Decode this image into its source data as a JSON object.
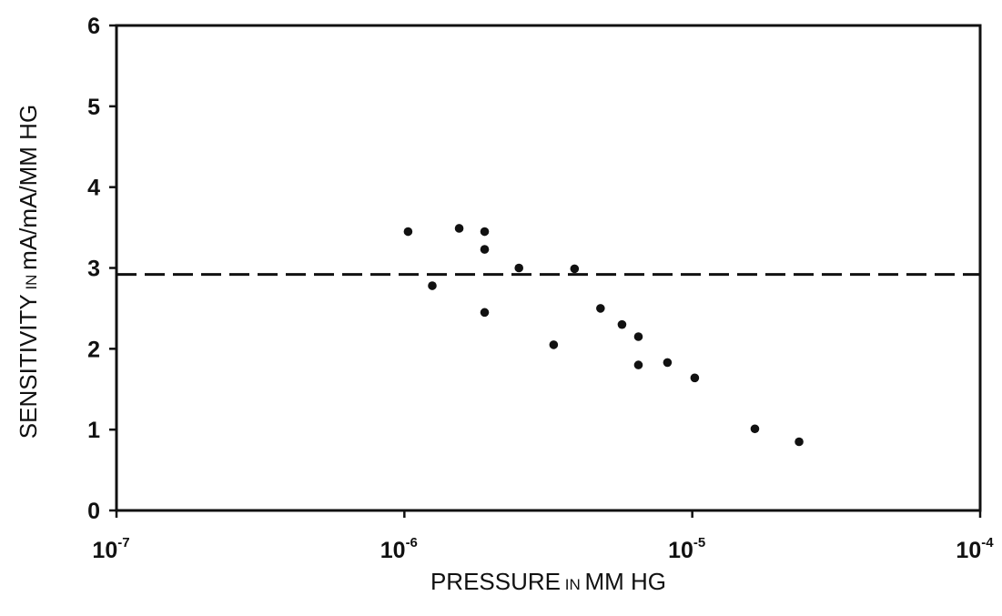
{
  "chart_data": {
    "type": "scatter",
    "title": "",
    "xlabel": {
      "parts": [
        {
          "text": "PRESSURE",
          "small": false
        },
        {
          "text": " IN ",
          "small": true
        },
        {
          "text": "MM HG",
          "small": false
        }
      ]
    },
    "ylabel": {
      "parts": [
        {
          "text": "SENSITIVITY",
          "small": false
        },
        {
          "text": " IN ",
          "small": true
        },
        {
          "text": "mA/mA/MM HG",
          "small": false
        }
      ]
    },
    "x_scale": "log",
    "xlim": [
      1e-07,
      0.0001
    ],
    "ylim": [
      0,
      6
    ],
    "x_ticks": [
      {
        "value": 1e-07,
        "base": "10",
        "exp": "-7"
      },
      {
        "value": 1e-06,
        "base": "10",
        "exp": "-6"
      },
      {
        "value": 1e-05,
        "base": "10",
        "exp": "-5"
      },
      {
        "value": 0.0001,
        "base": "10",
        "exp": "-4"
      }
    ],
    "y_ticks": [
      {
        "value": 0,
        "label": "0"
      },
      {
        "value": 1,
        "label": "1"
      },
      {
        "value": 2,
        "label": "2"
      },
      {
        "value": 3,
        "label": "3"
      },
      {
        "value": 4,
        "label": "4"
      },
      {
        "value": 5,
        "label": "5"
      },
      {
        "value": 6,
        "label": "6"
      }
    ],
    "grid": false,
    "reference_line": {
      "y": 2.92,
      "style": "dashed"
    },
    "points": [
      {
        "x": 1.03e-06,
        "y": 3.45
      },
      {
        "x": 1.25e-06,
        "y": 2.78
      },
      {
        "x": 1.55e-06,
        "y": 3.49
      },
      {
        "x": 1.9e-06,
        "y": 3.45
      },
      {
        "x": 1.9e-06,
        "y": 3.23
      },
      {
        "x": 1.9e-06,
        "y": 2.45
      },
      {
        "x": 2.5e-06,
        "y": 3.0
      },
      {
        "x": 3.3e-06,
        "y": 2.05
      },
      {
        "x": 3.9e-06,
        "y": 2.99
      },
      {
        "x": 4.8e-06,
        "y": 2.5
      },
      {
        "x": 5.7e-06,
        "y": 2.3
      },
      {
        "x": 6.5e-06,
        "y": 2.15
      },
      {
        "x": 6.5e-06,
        "y": 1.8
      },
      {
        "x": 8.2e-06,
        "y": 1.83
      },
      {
        "x": 1.02e-05,
        "y": 1.64
      },
      {
        "x": 1.65e-05,
        "y": 1.01
      },
      {
        "x": 2.35e-05,
        "y": 0.85
      }
    ],
    "colors": {
      "ink": "#111111",
      "background": "#ffffff"
    }
  }
}
